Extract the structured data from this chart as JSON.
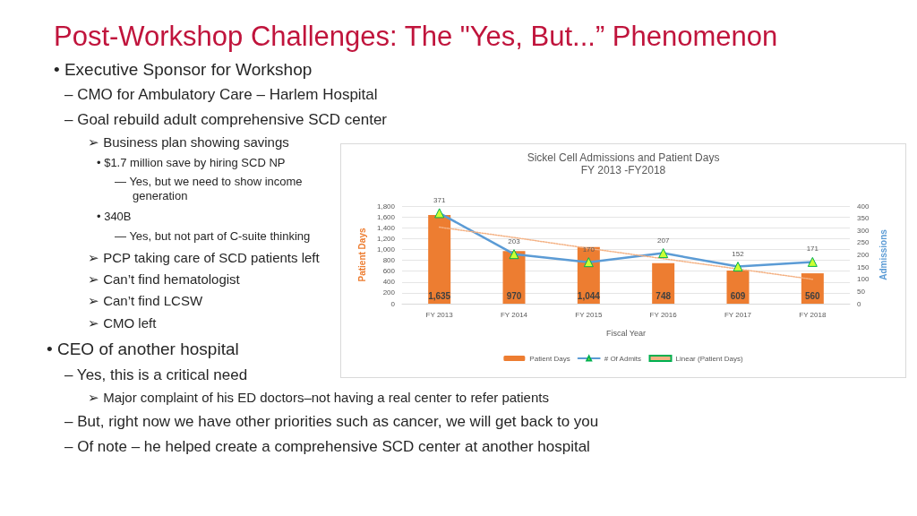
{
  "chart_data": {
    "type": "bar",
    "title": "Sickel Cell Admissions and Patient Days",
    "subtitle": "FY 2013 -FY2018",
    "xlabel": "Fiscal Year",
    "ylabel": "Patient Days",
    "y2label": "Admissions",
    "categories": [
      "FY 2013",
      "FY 2014",
      "FY 2015",
      "FY 2016",
      "FY 2017",
      "FY 2018"
    ],
    "series": [
      {
        "name": "Patient Days",
        "color": "#ed7d31",
        "values": [
          1635,
          970,
          1044,
          748,
          609,
          560
        ],
        "value_labels": [
          "1,635",
          "970",
          "1,044",
          "748",
          "609",
          "560"
        ]
      },
      {
        "name": "# Of Admits",
        "type": "line",
        "axis": "y2",
        "color": "#5b9bd5",
        "marker": "triangle",
        "line_style": "solid",
        "values": [
          371,
          203,
          170,
          207,
          152,
          171
        ],
        "value_labels": [
          "371",
          "203",
          "170",
          "207",
          "152",
          "171"
        ]
      },
      {
        "name": "Linear (Patient Days)",
        "type": "line",
        "color": "#f4b183",
        "marker": "none",
        "line_style": "dotted",
        "values": [
          1410,
          1220,
          1020,
          830,
          640,
          450
        ]
      }
    ],
    "ylim": [
      0,
      1800
    ],
    "yticks": [
      {
        "value": 0,
        "label": "0"
      },
      {
        "value": 200,
        "label": "200"
      },
      {
        "value": 400,
        "label": "400"
      },
      {
        "value": 600,
        "label": "600"
      },
      {
        "value": 800,
        "label": "800"
      },
      {
        "value": 1000,
        "label": "1,000"
      },
      {
        "value": 1200,
        "label": "1,200"
      },
      {
        "value": 1400,
        "label": "1,400"
      },
      {
        "value": 1600,
        "label": "1,600"
      },
      {
        "value": 1800,
        "label": "1,800"
      }
    ],
    "y2lim": [
      0,
      400
    ],
    "y2ticks": [
      0,
      50,
      100,
      150,
      200,
      250,
      300,
      350,
      400
    ],
    "grid": "y",
    "legend": "bottom",
    "annotations": [
      "Post-Workshop Challenges: The \"Yes, But...” Phenomenon",
      "• Executive Sponsor for Workshop",
      "– CMO for Ambulatory Care – Harlem Hospital",
      "– Goal rebuild adult comprehensive SCD center",
      "➢ Business plan showing savings",
      "• $1.7 million save by hiring SCD NP",
      "— Yes, but we need to show income generation",
      "• 340B",
      "— Yes, but not part of C-suite thinking",
      "➢ PCP taking care of SCD patients left",
      "➢ Can’t find hematologist",
      "➢ Can’t find LCSW",
      "➢ CMO left",
      "• CEO of another hospital",
      "– Yes, this is a critical need",
      "➢ Major complaint of his ED doctors–not having a real center to refer patients",
      "– But, right now we have other priorities such as cancer, we will get back to you",
      "– Of note – he helped create a comprehensive SCD center at another hospital"
    ]
  }
}
